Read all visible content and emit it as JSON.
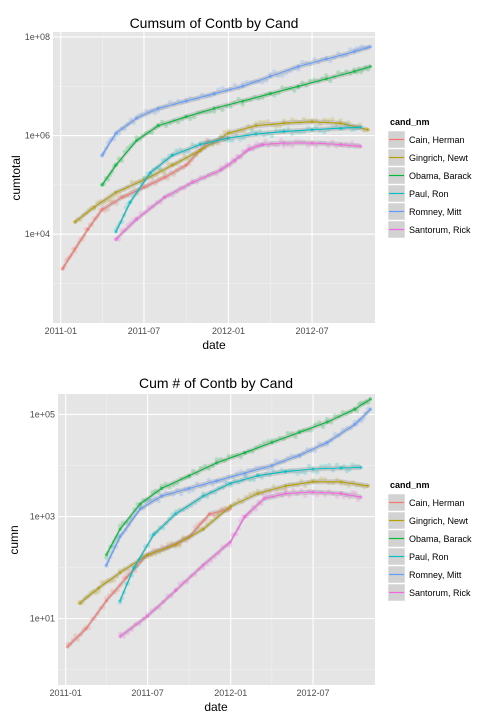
{
  "chart_data": [
    {
      "type": "scatter",
      "title": "Cumsum of Contb by Cand",
      "xlabel": "date",
      "ylabel": "cumtotal",
      "x_ticks": [
        "2011-01",
        "2011-07",
        "2012-01",
        "2012-07"
      ],
      "y_ticks": [
        "1e+04",
        "1e+06",
        "1e+08"
      ],
      "y_tick_values": [
        4,
        6,
        8
      ],
      "xlim": [
        "2010-12-15",
        "2012-11-15"
      ],
      "ylim_log10": [
        2.2,
        8.1
      ],
      "log_scale_y": true,
      "legend_title": "cand_nm",
      "legend_position": "right",
      "series": [
        {
          "name": "Cain, Herman",
          "color": "#F8766D",
          "x": [
            "2011-01-05",
            "2011-02-01",
            "2011-03-01",
            "2011-04-01",
            "2011-05-15",
            "2011-07-01",
            "2011-08-15",
            "2011-10-01",
            "2011-11-15",
            "2011-12-31"
          ],
          "y": [
            3.3,
            3.7,
            4.1,
            4.5,
            4.75,
            4.95,
            5.15,
            5.4,
            5.85,
            5.95
          ]
        },
        {
          "name": "Gingrich, Newt",
          "color": "#B79F00",
          "x": [
            "2011-02-01",
            "2011-03-15",
            "2011-05-01",
            "2011-07-01",
            "2011-09-01",
            "2011-11-01",
            "2012-01-01",
            "2012-03-01",
            "2012-05-01",
            "2012-07-01",
            "2012-09-01",
            "2012-10-31"
          ],
          "y": [
            4.25,
            4.55,
            4.85,
            5.1,
            5.4,
            5.7,
            6.05,
            6.2,
            6.25,
            6.28,
            6.25,
            6.12
          ]
        },
        {
          "name": "Obama, Barack",
          "color": "#00BA38",
          "x": [
            "2011-04-01",
            "2011-05-01",
            "2011-06-15",
            "2011-08-01",
            "2011-10-01",
            "2011-12-01",
            "2012-02-01",
            "2012-04-01",
            "2012-06-01",
            "2012-08-01",
            "2012-10-01",
            "2012-11-05"
          ],
          "y": [
            5.0,
            5.4,
            5.9,
            6.2,
            6.38,
            6.55,
            6.7,
            6.85,
            7.0,
            7.15,
            7.3,
            7.4
          ]
        },
        {
          "name": "Paul, Ron",
          "color": "#00BFC4",
          "x": [
            "2011-05-01",
            "2011-06-01",
            "2011-07-15",
            "2011-09-01",
            "2011-11-01",
            "2012-01-01",
            "2012-03-01",
            "2012-05-01",
            "2012-07-01",
            "2012-09-01",
            "2012-10-15"
          ],
          "y": [
            4.05,
            4.65,
            5.25,
            5.6,
            5.82,
            5.95,
            6.03,
            6.08,
            6.12,
            6.15,
            6.17
          ]
        },
        {
          "name": "Romney, Mitt",
          "color": "#619CFF",
          "x": [
            "2011-04-01",
            "2011-05-01",
            "2011-06-15",
            "2011-08-01",
            "2011-10-01",
            "2011-12-01",
            "2012-02-01",
            "2012-04-01",
            "2012-06-01",
            "2012-08-01",
            "2012-10-01",
            "2012-11-05"
          ],
          "y": [
            5.6,
            6.05,
            6.35,
            6.55,
            6.7,
            6.85,
            7.0,
            7.2,
            7.4,
            7.55,
            7.7,
            7.8
          ]
        },
        {
          "name": "Santorum, Rick",
          "color": "#F564E3",
          "x": [
            "2011-05-01",
            "2011-06-15",
            "2011-08-15",
            "2011-10-15",
            "2011-12-15",
            "2012-01-15",
            "2012-02-15",
            "2012-03-15",
            "2012-05-01",
            "2012-07-01",
            "2012-09-01",
            "2012-10-15"
          ],
          "y": [
            3.9,
            4.3,
            4.75,
            5.05,
            5.3,
            5.5,
            5.72,
            5.82,
            5.85,
            5.85,
            5.82,
            5.78
          ]
        }
      ]
    },
    {
      "type": "scatter",
      "title": "Cum # of Contb by Cand",
      "xlabel": "date",
      "ylabel": "cumn",
      "x_ticks": [
        "2011-01",
        "2011-07",
        "2012-01",
        "2012-07"
      ],
      "y_ticks": [
        "1e+01",
        "1e+03",
        "1e+05"
      ],
      "y_tick_values": [
        1,
        3,
        5
      ],
      "xlim": [
        "2010-12-15",
        "2012-11-15"
      ],
      "ylim_log10": [
        -0.3,
        5.4
      ],
      "log_scale_y": true,
      "legend_title": "cand_nm",
      "legend_position": "right",
      "series": [
        {
          "name": "Cain, Herman",
          "color": "#F8766D",
          "x": [
            "2011-01-05",
            "2011-02-15",
            "2011-04-01",
            "2011-05-15",
            "2011-07-01",
            "2011-08-15",
            "2011-10-01",
            "2011-11-15",
            "2011-12-31"
          ],
          "y": [
            0.45,
            0.8,
            1.35,
            1.8,
            2.25,
            2.4,
            2.6,
            3.05,
            3.15
          ]
        },
        {
          "name": "Gingrich, Newt",
          "color": "#B79F00",
          "x": [
            "2011-02-01",
            "2011-03-15",
            "2011-05-01",
            "2011-07-01",
            "2011-09-01",
            "2011-11-01",
            "2012-01-01",
            "2012-03-01",
            "2012-05-01",
            "2012-07-01",
            "2012-09-01",
            "2012-10-31"
          ],
          "y": [
            1.3,
            1.6,
            1.9,
            2.25,
            2.45,
            2.75,
            3.2,
            3.45,
            3.6,
            3.68,
            3.68,
            3.6
          ]
        },
        {
          "name": "Obama, Barack",
          "color": "#00BA38",
          "x": [
            "2011-04-01",
            "2011-05-01",
            "2011-06-15",
            "2011-08-01",
            "2011-10-01",
            "2011-12-01",
            "2012-02-01",
            "2012-04-01",
            "2012-06-01",
            "2012-08-01",
            "2012-10-01",
            "2012-11-05"
          ],
          "y": [
            2.25,
            2.75,
            3.25,
            3.55,
            3.8,
            4.05,
            4.25,
            4.45,
            4.65,
            4.85,
            5.1,
            5.3
          ]
        },
        {
          "name": "Paul, Ron",
          "color": "#00BFC4",
          "x": [
            "2011-05-01",
            "2011-06-01",
            "2011-07-15",
            "2011-09-01",
            "2011-11-01",
            "2012-01-01",
            "2012-03-01",
            "2012-05-01",
            "2012-07-01",
            "2012-09-01",
            "2012-10-15"
          ],
          "y": [
            1.35,
            2.0,
            2.65,
            3.05,
            3.4,
            3.65,
            3.8,
            3.88,
            3.93,
            3.95,
            3.96
          ]
        },
        {
          "name": "Romney, Mitt",
          "color": "#619CFF",
          "x": [
            "2011-04-01",
            "2011-05-01",
            "2011-06-15",
            "2011-08-01",
            "2011-10-01",
            "2011-12-01",
            "2012-02-01",
            "2012-04-01",
            "2012-06-01",
            "2012-08-01",
            "2012-10-01",
            "2012-11-05"
          ],
          "y": [
            2.05,
            2.6,
            3.15,
            3.4,
            3.55,
            3.7,
            3.85,
            4.0,
            4.2,
            4.45,
            4.8,
            5.1
          ]
        },
        {
          "name": "Santorum, Rick",
          "color": "#F564E3",
          "x": [
            "2011-05-01",
            "2011-07-01",
            "2011-09-01",
            "2011-11-01",
            "2011-12-31",
            "2012-02-01",
            "2012-03-15",
            "2012-05-01",
            "2012-07-01",
            "2012-09-01",
            "2012-10-15"
          ],
          "y": [
            0.65,
            1.05,
            1.55,
            2.05,
            2.5,
            3.0,
            3.35,
            3.45,
            3.48,
            3.45,
            3.38
          ]
        }
      ]
    }
  ]
}
